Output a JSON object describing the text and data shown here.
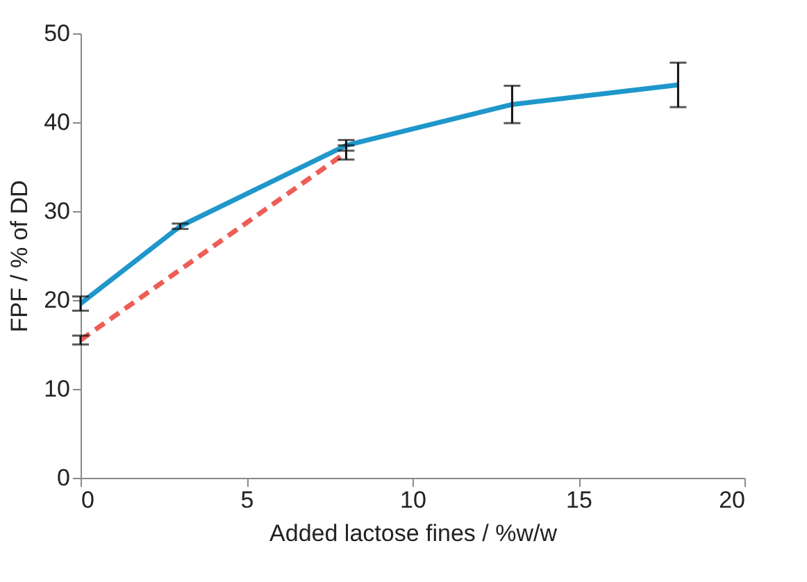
{
  "chart_data": {
    "type": "line",
    "xlabel": "Added lactose fines / %w/w",
    "ylabel": "FPF / % of DD",
    "xlim": [
      0,
      20
    ],
    "xticks": [
      0,
      5,
      10,
      15,
      20
    ],
    "ylim": [
      0,
      50
    ],
    "yticks": [
      0,
      10,
      20,
      30,
      40,
      50
    ],
    "grid": false,
    "marker": "none",
    "series": [
      {
        "color": "#1f97cb",
        "line_style": "solid",
        "x": [
          0,
          3,
          8,
          13,
          18
        ],
        "values": [
          19.6,
          28.3,
          37.4,
          42.0,
          44.2
        ],
        "errors": [
          0.8,
          0.3,
          0.6,
          2.1,
          2.5
        ]
      },
      {
        "color": "#ec5e56",
        "line_style": "dashed",
        "x": [
          0,
          8
        ],
        "values": [
          15.5,
          36.6
        ],
        "errors": [
          0.5,
          0.8
        ]
      }
    ]
  }
}
